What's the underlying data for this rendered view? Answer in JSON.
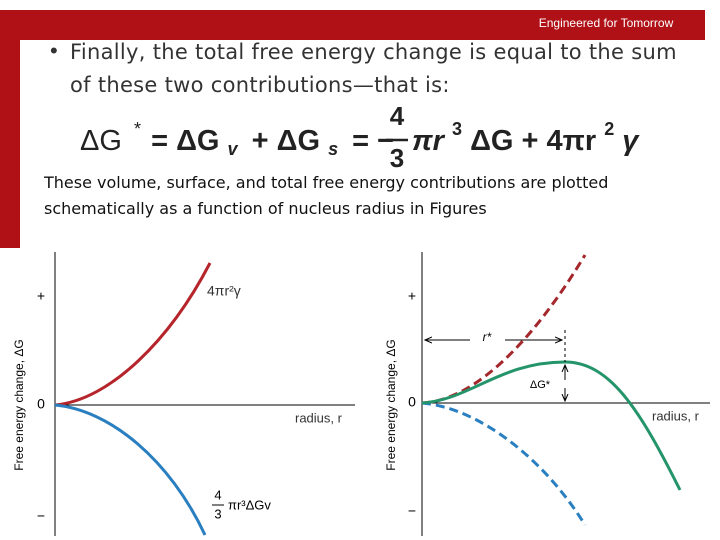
{
  "header": {
    "brand": "Engineered for Tomorrow"
  },
  "bullet": "Finally, the total free energy change is equal to the sum of these two contributions—that is:",
  "equation": {
    "lhs": "ΔG",
    "star": "*",
    "eq1": "= ΔG",
    "sub_v": "v",
    "plus1": "+ ΔG",
    "sub_s": "s",
    "eq2": "= −",
    "num": "4",
    "den": "3",
    "term1": "πr",
    "exp1": "3",
    "term2": " ΔG + 4πr",
    "exp2": "2",
    "gamma": "γ"
  },
  "paragraph": "These volume, surface, and total free energy contributions are plotted schematically as a function of nucleus radius in Figures",
  "figure_left": {
    "y_label": "Free energy change, ΔG",
    "tick_plus": "+",
    "tick_zero": "0",
    "tick_minus": "−",
    "x_label": "radius, r",
    "surface_label": "4πr²γ",
    "volume_num": "4",
    "volume_den": "3",
    "volume_label": "πr³ΔGv"
  },
  "figure_right": {
    "y_label": "Free energy change, ΔG",
    "tick_plus": "+",
    "tick_zero": "0",
    "tick_minus": "−",
    "x_label": "radius, r",
    "critical_radius": "r*",
    "barrier": "ΔG*"
  }
}
